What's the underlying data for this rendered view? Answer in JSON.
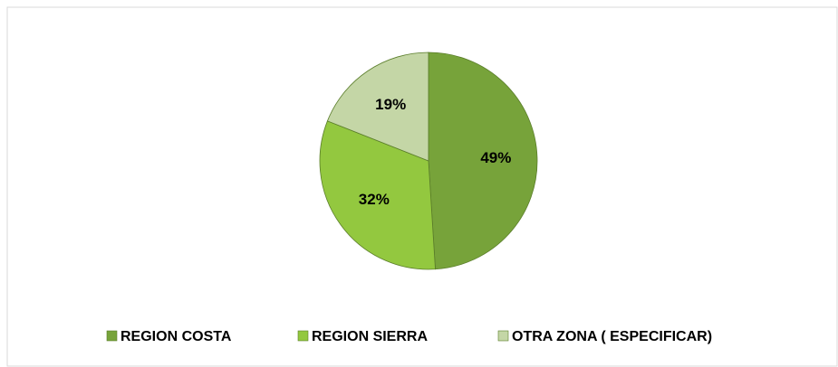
{
  "chart_data": {
    "type": "pie",
    "categories": [
      "REGION COSTA",
      "REGION SIERRA",
      "OTRA ZONA ( ESPECIFICAR)"
    ],
    "values": [
      49,
      32,
      19
    ],
    "value_labels": [
      "49%",
      "32%",
      "19%"
    ],
    "colors": [
      "#77a33a",
      "#93c83f",
      "#c4d6a6"
    ],
    "legend": "bottom"
  }
}
